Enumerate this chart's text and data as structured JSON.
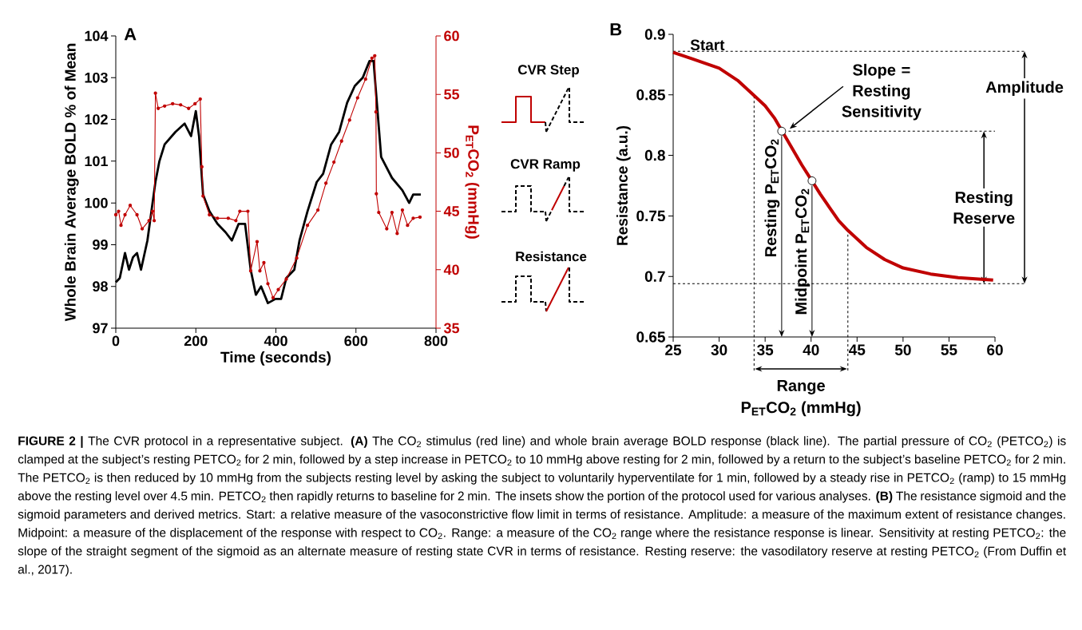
{
  "chart_data": [
    {
      "type": "line",
      "title": "A",
      "xlabel": "Time (seconds)",
      "ylabel": "Whole Brain Average BOLD % of Mean",
      "y2label": "P$_{ET}$CO$_{2}$ (mmHg)",
      "xlim": [
        0,
        800
      ],
      "ylim": [
        97,
        104
      ],
      "y2lim": [
        35,
        60
      ],
      "xticks": [
        0,
        200,
        400,
        600,
        800
      ],
      "yticks": [
        97,
        98,
        99,
        100,
        101,
        102,
        103,
        104
      ],
      "y2ticks": [
        35,
        40,
        45,
        50,
        55,
        60
      ],
      "series": [
        {
          "color": "#000000",
          "marker": "none",
          "x": [
            0,
            10,
            23,
            33,
            43,
            53,
            63,
            79,
            89,
            99,
            109,
            122,
            149,
            172,
            188,
            200,
            208,
            218,
            234,
            254,
            274,
            290,
            307,
            323,
            337,
            350,
            363,
            380,
            399,
            413,
            426,
            446,
            459,
            479,
            502,
            518,
            538,
            558,
            578,
            597,
            617,
            634,
            644,
            663,
            690,
            716,
            733,
            743,
            762
          ],
          "values": [
            98.1,
            98.2,
            98.8,
            98.4,
            98.7,
            98.8,
            98.4,
            99.1,
            99.8,
            100.5,
            101.0,
            101.4,
            101.7,
            101.9,
            101.6,
            102.2,
            101.6,
            100.2,
            99.8,
            99.5,
            99.3,
            99.1,
            99.5,
            99.5,
            98.4,
            97.8,
            98.0,
            97.6,
            97.7,
            97.7,
            98.2,
            98.4,
            99.1,
            99.8,
            100.5,
            100.7,
            101.4,
            101.7,
            102.4,
            102.8,
            103.0,
            103.4,
            103.4,
            101.1,
            100.6,
            100.3,
            100.0,
            100.2,
            100.2
          ]
        },
        {
          "color": "#c00000",
          "axis": "y2",
          "marker": "circle",
          "x": [
            0,
            7,
            13,
            23,
            36,
            53,
            66,
            83,
            92,
            96,
            99,
            106,
            122,
            142,
            162,
            182,
            198,
            211,
            215,
            218,
            234,
            254,
            281,
            300,
            310,
            330,
            337,
            353,
            360,
            370,
            380,
            393,
            406,
            426,
            452,
            479,
            505,
            525,
            545,
            564,
            584,
            604,
            624,
            640,
            647,
            650,
            651,
            657,
            677,
            690,
            703,
            716,
            729,
            743,
            760
          ],
          "values": [
            44.7,
            45.0,
            43.8,
            44.7,
            45.5,
            44.7,
            43.5,
            44.2,
            45.0,
            44.2,
            55.1,
            53.8,
            54.0,
            54.2,
            54.1,
            53.8,
            54.2,
            54.6,
            48.8,
            46.3,
            44.7,
            44.4,
            44.4,
            44.2,
            45.0,
            45.0,
            39.9,
            42.4,
            39.9,
            40.6,
            38.8,
            37.6,
            38.3,
            39.2,
            41.0,
            43.8,
            45.1,
            47.4,
            49.2,
            51.0,
            52.8,
            54.7,
            56.3,
            58.1,
            58.3,
            53.5,
            46.5,
            44.9,
            43.5,
            44.9,
            43.1,
            45.1,
            43.8,
            44.4,
            44.5
          ]
        }
      ]
    },
    {
      "type": "other",
      "annotations": [
        "CVR Step",
        "CVR Ramp",
        "Resistance"
      ]
    },
    {
      "type": "line",
      "title": "B",
      "xlabel": "P$_{ET}$CO$_{2}$ (mmHg)",
      "ylabel": "Resistance (a.u.)",
      "xlim": [
        25,
        60
      ],
      "ylim": [
        0.65,
        0.9
      ],
      "xticks": [
        25,
        30,
        35,
        40,
        45,
        50,
        55,
        60
      ],
      "yticks": [
        0.65,
        0.7,
        0.75,
        0.8,
        0.85,
        0.9
      ],
      "series": [
        {
          "color": "#c00000",
          "x": [
            25,
            27,
            30,
            32,
            34,
            35,
            36,
            37,
            38,
            39,
            40,
            41,
            42,
            43,
            44,
            46,
            48,
            50,
            53,
            56,
            59.8
          ],
          "values": [
            0.885,
            0.88,
            0.872,
            0.862,
            0.848,
            0.841,
            0.831,
            0.818,
            0.805,
            0.792,
            0.78,
            0.768,
            0.757,
            0.746,
            0.738,
            0.724,
            0.714,
            0.707,
            0.702,
            0.699,
            0.697
          ]
        },
        {
          "type": "scatter",
          "color": "#ffffff",
          "marker": "circle",
          "x": [
            36.8,
            40.1
          ],
          "values": [
            0.82,
            0.779
          ]
        }
      ],
      "ref_lines": [
        {
          "axis": "y",
          "value": 0.886,
          "label": "Start",
          "line_style": "dashed"
        },
        {
          "axis": "y",
          "value": 0.694,
          "line_style": "dashed"
        },
        {
          "axis": "y",
          "value": 0.82,
          "line_style": "dashed"
        },
        {
          "axis": "x",
          "value": 33.8,
          "line_style": "dashed"
        },
        {
          "axis": "x",
          "value": 44,
          "line_style": "dashed"
        }
      ],
      "annotations": [
        "Slope = Resting Sensitivity",
        "Amplitude",
        {
          "text": "Resting Reserve",
          "x": 58.8,
          "y": 0.82
        },
        "Resting P$_{ET}$CO$_{2}$",
        "Midpoint P$_{ET}$CO$_{2}$",
        "Range"
      ]
    },
    {
      "type": "other",
      "annotations": [
        "**FIGURE 2 |** The CVR protocol in a representative subject. **(A)** The CO$_{2}$ stimulus (red line) and whole brain average BOLD response (black line). The partial pressure of CO$_{2}$ (PETCO$_{2}$) is clamped at the subject’s resting PETCO$_{2}$ for 2 min, followed by a step increase in PETCO$_{2}$ to 10 mmHg above resting for 2 min, followed by a return to the subject’s baseline PETCO$_{2}$ for 2 min. The PETCO$_{2}$ is then reduced by 10 mmHg from the subjects resting level by asking the subject to voluntarily hyperventilate for 1 min, followed by a steady rise in PETCO$_{2}$ (ramp) to 15 mmHg above the resting level over 4.5 min. PETCO$_{2}$ then rapidly returns to baseline for 2 min. The insets show the portion of the protocol used for various analyses. **(B)** The resistance sigmoid and the sigmoid parameters and derived metrics. Start: a relative measure of the vasoconstrictive flow limit in terms of resistance. Amplitude: a measure of the maximum extent of resistance changes. Midpoint: a measure of the displacement of the response with respect to CO$_{2}$. Range: a measure of the CO$_{2}$ range where the resistance response is linear. Sensitivity at resting PETCO$_{2}$: the slope of the straight segment of the sigmoid as an alternate measure of resting state CVR in terms of resistance. Resting reserve: the vasodilatory reserve at resting PETCO$_{2}$ (From Duffin et al., 2017)."
      ]
    }
  ]
}
